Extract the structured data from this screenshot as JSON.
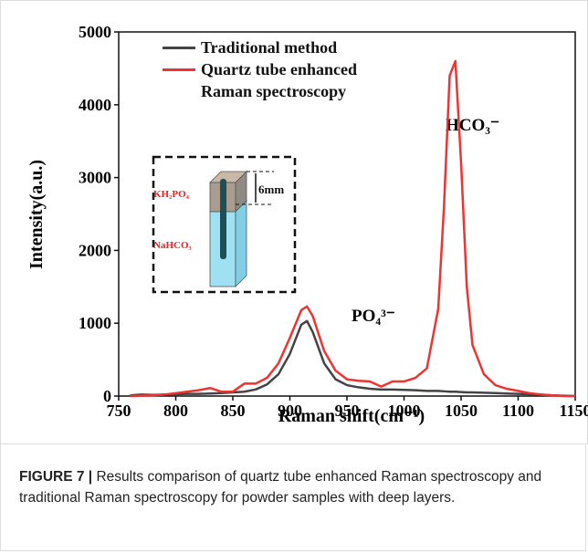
{
  "chart_data": {
    "type": "line",
    "xlabel": "Raman shift(cm⁻¹)",
    "ylabel": "Intensity(a.u.)",
    "x": [
      760,
      770,
      780,
      790,
      800,
      810,
      820,
      830,
      840,
      850,
      860,
      870,
      880,
      890,
      900,
      910,
      915,
      920,
      930,
      940,
      950,
      960,
      970,
      980,
      990,
      1000,
      1010,
      1020,
      1030,
      1035,
      1040,
      1045,
      1050,
      1055,
      1060,
      1070,
      1080,
      1090,
      1100,
      1110,
      1120,
      1130,
      1140,
      1150
    ],
    "series": [
      {
        "name": "Traditional method",
        "color": "#444444",
        "values": [
          10,
          20,
          15,
          20,
          25,
          30,
          30,
          35,
          40,
          50,
          60,
          90,
          160,
          300,
          580,
          980,
          1030,
          880,
          450,
          230,
          150,
          120,
          100,
          90,
          90,
          85,
          80,
          70,
          70,
          65,
          60,
          60,
          55,
          50,
          50,
          45,
          40,
          35,
          30,
          25,
          20,
          10,
          5,
          0
        ]
      },
      {
        "name": "Quartz tube enhanced Raman spectroscopy",
        "color": "#ee3333",
        "values": [
          0,
          5,
          10,
          20,
          40,
          60,
          80,
          110,
          60,
          60,
          170,
          170,
          250,
          450,
          800,
          1180,
          1230,
          1100,
          620,
          350,
          230,
          210,
          200,
          130,
          200,
          200,
          250,
          380,
          1200,
          2600,
          4400,
          4600,
          3200,
          1500,
          700,
          300,
          150,
          100,
          70,
          40,
          20,
          10,
          0,
          0
        ]
      }
    ],
    "xlim": [
      750,
      1150
    ],
    "xticks": [
      750,
      800,
      850,
      900,
      950,
      1000,
      1050,
      1100,
      1150
    ],
    "ylim": [
      0,
      5000
    ],
    "yticks": [
      0,
      1000,
      2000,
      3000,
      4000,
      5000
    ],
    "annotations": [
      "HCO₃⁻",
      "PO₄³⁻"
    ],
    "inset": {
      "labels": [
        "KH₂PO₄",
        "NaHCO₃"
      ],
      "dimension": "6mm"
    }
  },
  "caption": {
    "label": "FIGURE 7 |",
    "text": "Results comparison of quartz tube enhanced Raman spectroscopy and traditional Raman spectroscopy for powder samples with deep layers."
  }
}
